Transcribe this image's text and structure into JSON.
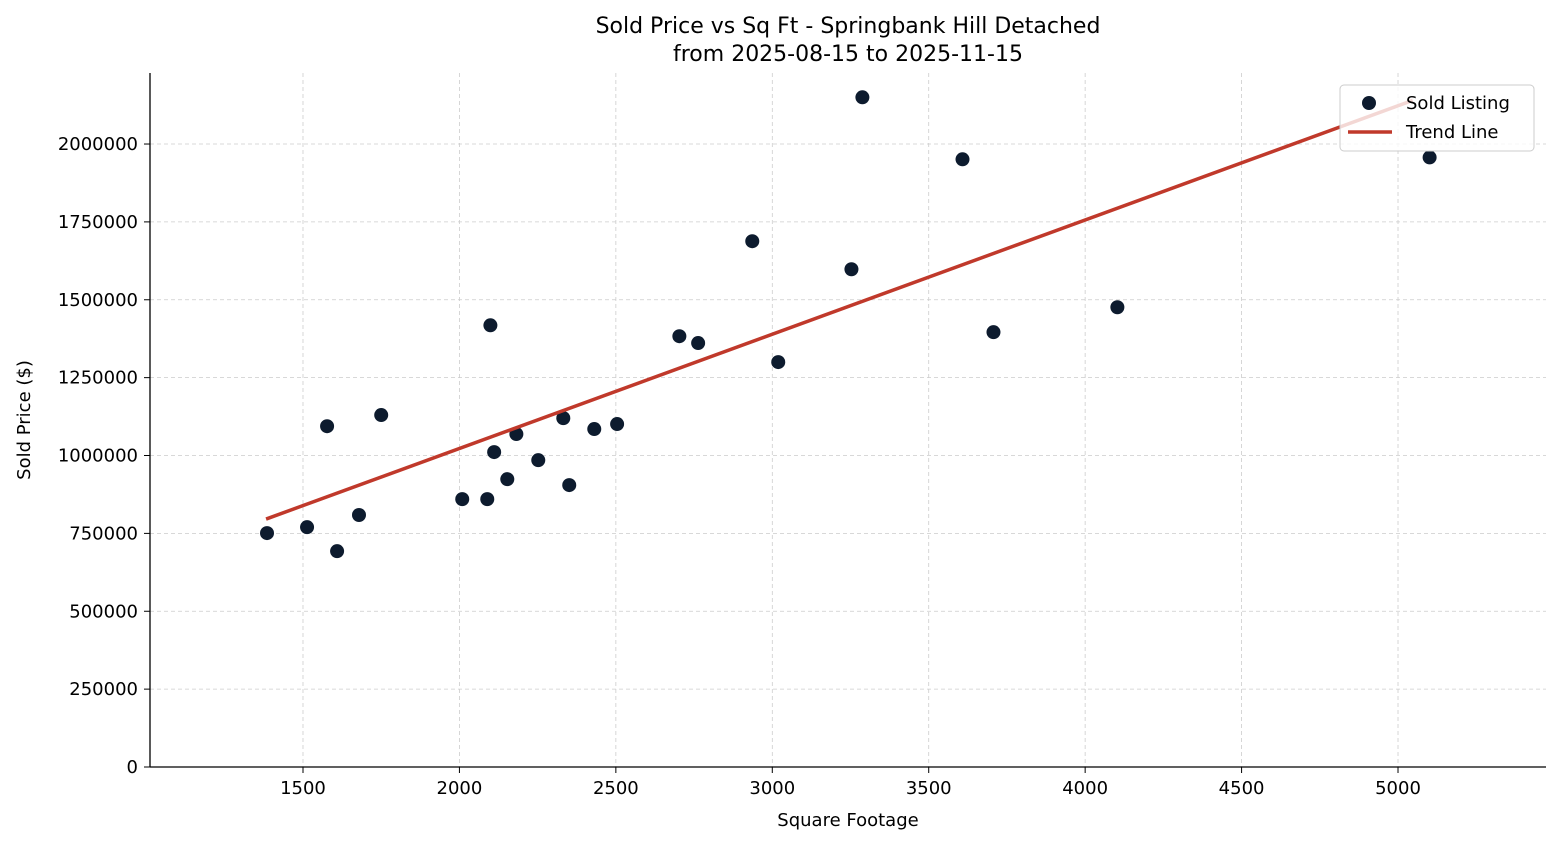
{
  "chart_data": {
    "type": "scatter",
    "title": "Sold Price vs Sq Ft - Springbank Hill Detached",
    "subtitle": "from 2025-08-15 to 2025-11-15",
    "xlabel": "Square Footage",
    "ylabel": "Sold Price ($)",
    "xlim": [
      1011,
      5473
    ],
    "ylim": [
      0,
      2228000
    ],
    "xticks": [
      1500,
      2000,
      2500,
      3000,
      3500,
      4000,
      4500,
      5000
    ],
    "yticks": [
      0,
      250000,
      500000,
      750000,
      1000000,
      1250000,
      1500000,
      1750000,
      2000000
    ],
    "grid": true,
    "legend_position": "top-right",
    "series": [
      {
        "name": "Sold Listing",
        "type": "scatter",
        "color": "#0d1b2e",
        "x": [
          1385,
          1513,
          1577,
          1609,
          1679,
          1750,
          2009,
          2089,
          2099,
          2111,
          2153,
          2182,
          2252,
          2332,
          2351,
          2431,
          2504,
          2703,
          2763,
          2936,
          3019,
          3253,
          3288,
          3608,
          3707,
          4103,
          5101
        ],
        "y": [
          751000,
          770000,
          1094000,
          693000,
          809000,
          1130000,
          860000,
          860000,
          1418000,
          1011000,
          924000,
          1069000,
          985000,
          1120000,
          905000,
          1085000,
          1101000,
          1383000,
          1361000,
          1688000,
          1300000,
          1598000,
          2150000,
          1951000,
          1396000,
          1476000,
          1957000
        ]
      },
      {
        "name": "Trend Line",
        "type": "line",
        "color": "#c0392b",
        "x": [
          1382,
          5047
        ],
        "y": [
          796000,
          2140000
        ]
      }
    ]
  }
}
